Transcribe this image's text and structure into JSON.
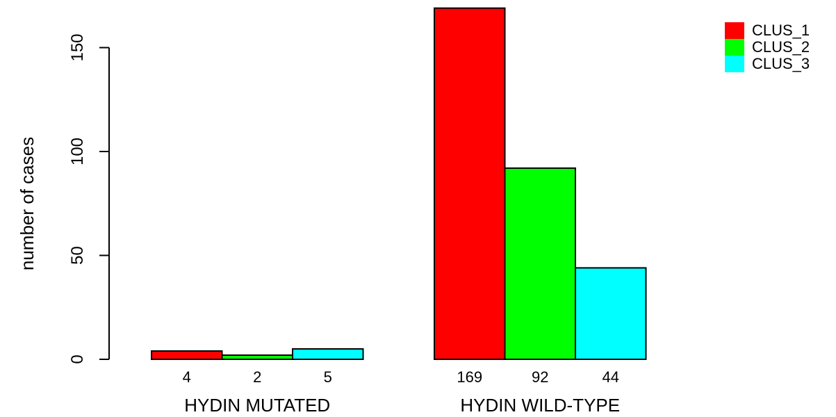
{
  "chart_data": {
    "type": "bar",
    "ylabel": "number of cases",
    "ylim": [
      0,
      170
    ],
    "yticks": [
      0,
      50,
      100,
      150
    ],
    "groups": [
      {
        "label": "HYDIN MUTATED",
        "values": [
          4,
          2,
          5
        ]
      },
      {
        "label": "HYDIN WILD-TYPE",
        "values": [
          169,
          92,
          44
        ]
      }
    ],
    "series": [
      {
        "name": "CLUS_1",
        "color": "#ff0000"
      },
      {
        "name": "CLUS_2",
        "color": "#00ff00"
      },
      {
        "name": "CLUS_3",
        "color": "#00ffff"
      }
    ],
    "legend_position": "top-right",
    "grid": false
  }
}
